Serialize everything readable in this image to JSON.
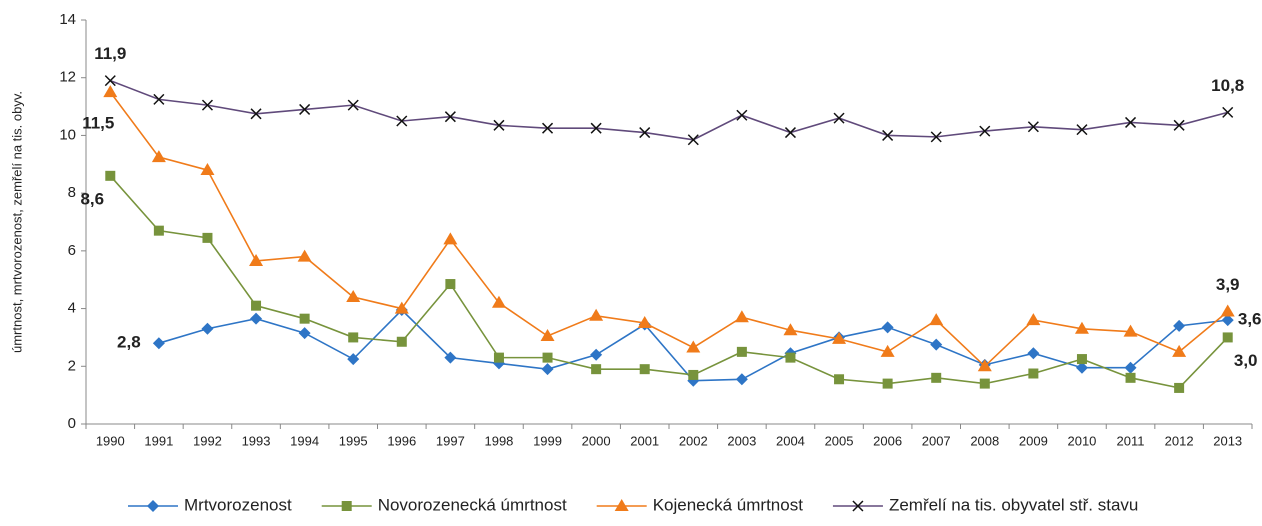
{
  "chart_data": {
    "type": "line",
    "y_axis_label": "úmrtnost, mrtvorozenost, zemřelí na tis. obyv.",
    "categories": [
      "1990",
      "1991",
      "1992",
      "1993",
      "1994",
      "1995",
      "1996",
      "1997",
      "1998",
      "1999",
      "2000",
      "2001",
      "2002",
      "2003",
      "2004",
      "2005",
      "2006",
      "2007",
      "2008",
      "2009",
      "2010",
      "2011",
      "2012",
      "2013"
    ],
    "ylim": [
      0,
      14
    ],
    "yticks": [
      0,
      2,
      4,
      6,
      8,
      10,
      12,
      14
    ],
    "grid": false,
    "legend": "bottom",
    "series": [
      {
        "name": "Mrtvorozenost",
        "color": "#2e75c6",
        "label_color": "#1f3d6e",
        "marker": "diamond",
        "values": [
          null,
          2.8,
          3.3,
          3.65,
          3.15,
          2.25,
          3.95,
          2.3,
          2.1,
          1.9,
          2.4,
          3.45,
          1.5,
          1.55,
          2.45,
          3.0,
          3.35,
          2.75,
          2.05,
          2.45,
          1.95,
          1.95,
          3.4,
          3.6
        ],
        "value_labels": [
          null,
          "2,8",
          null,
          null,
          null,
          null,
          null,
          null,
          null,
          null,
          null,
          null,
          null,
          null,
          null,
          null,
          null,
          null,
          null,
          null,
          null,
          null,
          null,
          "3,6"
        ]
      },
      {
        "name": "Novorozenecká úmrtnost",
        "color": "#77933c",
        "label_color": "#77933c",
        "marker": "square",
        "values": [
          8.6,
          6.7,
          6.45,
          4.1,
          3.65,
          3.0,
          2.85,
          4.85,
          2.3,
          2.3,
          1.9,
          1.9,
          1.7,
          2.5,
          2.3,
          1.55,
          1.4,
          1.6,
          1.4,
          1.75,
          2.25,
          1.6,
          1.25,
          3.0
        ],
        "value_labels": [
          "8,6",
          null,
          null,
          null,
          null,
          null,
          null,
          null,
          null,
          null,
          null,
          null,
          null,
          null,
          null,
          null,
          null,
          null,
          null,
          null,
          null,
          null,
          null,
          "3,0"
        ]
      },
      {
        "name": "Kojenecká úmrtnost",
        "color": "#f07b1a",
        "label_color": "#c0504d",
        "marker": "triangle",
        "values": [
          11.5,
          9.25,
          8.8,
          5.65,
          5.8,
          4.4,
          4.0,
          6.4,
          4.2,
          3.05,
          3.75,
          3.5,
          2.65,
          3.7,
          3.25,
          2.95,
          2.5,
          3.6,
          2.0,
          3.6,
          3.3,
          3.2,
          2.5,
          3.9
        ],
        "value_labels": [
          "11,5",
          null,
          null,
          null,
          null,
          null,
          null,
          null,
          null,
          null,
          null,
          null,
          null,
          null,
          null,
          null,
          null,
          null,
          null,
          null,
          null,
          null,
          null,
          "3,9"
        ]
      },
      {
        "name": "Zemřelí na tis. obyvatel stř. stavu",
        "color": "#604a7b",
        "label_color": "#604a7b",
        "marker": "x",
        "values": [
          11.9,
          11.25,
          11.05,
          10.75,
          10.9,
          11.05,
          10.5,
          10.65,
          10.35,
          10.25,
          10.25,
          10.1,
          9.85,
          10.7,
          10.1,
          10.6,
          10.0,
          9.95,
          10.15,
          10.3,
          10.2,
          10.45,
          10.35,
          10.8
        ],
        "value_labels": [
          "11,9",
          null,
          null,
          null,
          null,
          null,
          null,
          null,
          null,
          null,
          null,
          null,
          null,
          null,
          null,
          null,
          null,
          null,
          null,
          null,
          null,
          null,
          null,
          "10,8"
        ]
      }
    ]
  }
}
